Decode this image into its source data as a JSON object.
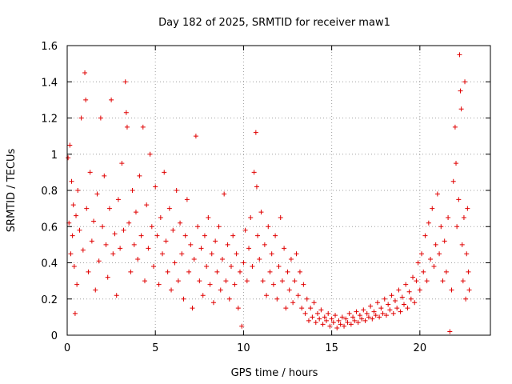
{
  "chart_data": {
    "type": "scatter",
    "title": "Day 182 of 2025, SRMTID for receiver maw1",
    "xlabel": "GPS time / hours",
    "ylabel": "SRMTID / TECUs",
    "xlim": [
      0,
      24
    ],
    "ylim": [
      0,
      1.6
    ],
    "xticks": [
      0,
      5,
      10,
      15,
      20
    ],
    "xtick_labels": [
      "0",
      "5",
      "10",
      "15",
      "20"
    ],
    "yticks": [
      0,
      0.2,
      0.4,
      0.6,
      0.8,
      1,
      1.2,
      1.4,
      1.6
    ],
    "ytick_labels": [
      "0",
      "0.2",
      "0.4",
      "0.6",
      "0.8",
      "1",
      "1.2",
      "1.4",
      "1.6"
    ],
    "grid": true,
    "marker": "+",
    "color": "#e00000",
    "series": [
      {
        "name": "SRMTID",
        "points": [
          [
            0.05,
            0.98
          ],
          [
            0.1,
            0.62
          ],
          [
            0.15,
            1.05
          ],
          [
            0.2,
            0.45
          ],
          [
            0.25,
            0.85
          ],
          [
            0.3,
            0.55
          ],
          [
            0.35,
            0.72
          ],
          [
            0.4,
            0.38
          ],
          [
            0.45,
            0.12
          ],
          [
            0.5,
            0.66
          ],
          [
            0.55,
            0.28
          ],
          [
            0.6,
            0.8
          ],
          [
            0.7,
            0.58
          ],
          [
            0.8,
            1.2
          ],
          [
            0.9,
            0.47
          ],
          [
            1.0,
            1.45
          ],
          [
            1.05,
            1.3
          ],
          [
            1.1,
            0.7
          ],
          [
            1.2,
            0.35
          ],
          [
            1.3,
            0.9
          ],
          [
            1.4,
            0.52
          ],
          [
            1.5,
            0.63
          ],
          [
            1.6,
            0.25
          ],
          [
            1.7,
            0.78
          ],
          [
            1.8,
            0.41
          ],
          [
            1.9,
            1.2
          ],
          [
            2.0,
            0.6
          ],
          [
            2.1,
            0.88
          ],
          [
            2.2,
            0.5
          ],
          [
            2.3,
            0.32
          ],
          [
            2.4,
            0.7
          ],
          [
            2.5,
            1.3
          ],
          [
            2.6,
            0.45
          ],
          [
            2.7,
            0.56
          ],
          [
            2.8,
            0.22
          ],
          [
            2.9,
            0.75
          ],
          [
            3.0,
            0.48
          ],
          [
            3.1,
            0.95
          ],
          [
            3.2,
            0.58
          ],
          [
            3.3,
            1.4
          ],
          [
            3.35,
            1.23
          ],
          [
            3.4,
            1.15
          ],
          [
            3.5,
            0.62
          ],
          [
            3.6,
            0.35
          ],
          [
            3.7,
            0.8
          ],
          [
            3.8,
            0.5
          ],
          [
            3.9,
            0.68
          ],
          [
            4.0,
            0.42
          ],
          [
            4.1,
            0.88
          ],
          [
            4.2,
            0.55
          ],
          [
            4.3,
            1.15
          ],
          [
            4.4,
            0.3
          ],
          [
            4.5,
            0.72
          ],
          [
            4.6,
            0.48
          ],
          [
            4.7,
            1.0
          ],
          [
            4.8,
            0.6
          ],
          [
            4.9,
            0.38
          ],
          [
            5.0,
            0.82
          ],
          [
            5.1,
            0.55
          ],
          [
            5.2,
            0.28
          ],
          [
            5.3,
            0.65
          ],
          [
            5.4,
            0.45
          ],
          [
            5.5,
            0.9
          ],
          [
            5.6,
            0.52
          ],
          [
            5.7,
            0.35
          ],
          [
            5.8,
            0.7
          ],
          [
            5.9,
            0.25
          ],
          [
            6.0,
            0.58
          ],
          [
            6.1,
            0.4
          ],
          [
            6.2,
            0.8
          ],
          [
            6.3,
            0.3
          ],
          [
            6.4,
            0.62
          ],
          [
            6.5,
            0.45
          ],
          [
            6.6,
            0.2
          ],
          [
            6.7,
            0.55
          ],
          [
            6.8,
            0.75
          ],
          [
            6.9,
            0.35
          ],
          [
            7.0,
            0.5
          ],
          [
            7.1,
            0.15
          ],
          [
            7.2,
            0.42
          ],
          [
            7.3,
            1.1
          ],
          [
            7.4,
            0.6
          ],
          [
            7.5,
            0.3
          ],
          [
            7.6,
            0.48
          ],
          [
            7.7,
            0.22
          ],
          [
            7.8,
            0.55
          ],
          [
            7.9,
            0.38
          ],
          [
            8.0,
            0.65
          ],
          [
            8.1,
            0.28
          ],
          [
            8.2,
            0.45
          ],
          [
            8.3,
            0.18
          ],
          [
            8.4,
            0.52
          ],
          [
            8.5,
            0.35
          ],
          [
            8.6,
            0.6
          ],
          [
            8.7,
            0.25
          ],
          [
            8.8,
            0.42
          ],
          [
            8.9,
            0.78
          ],
          [
            9.0,
            0.3
          ],
          [
            9.1,
            0.5
          ],
          [
            9.2,
            0.2
          ],
          [
            9.3,
            0.38
          ],
          [
            9.4,
            0.55
          ],
          [
            9.5,
            0.28
          ],
          [
            9.6,
            0.45
          ],
          [
            9.7,
            0.15
          ],
          [
            9.8,
            0.35
          ],
          [
            9.9,
            0.05
          ],
          [
            10.0,
            0.4
          ],
          [
            10.1,
            0.58
          ],
          [
            10.2,
            0.3
          ],
          [
            10.3,
            0.48
          ],
          [
            10.4,
            0.65
          ],
          [
            10.5,
            0.38
          ],
          [
            10.6,
            0.9
          ],
          [
            10.7,
            1.12
          ],
          [
            10.75,
            0.82
          ],
          [
            10.8,
            0.55
          ],
          [
            10.9,
            0.42
          ],
          [
            11.0,
            0.68
          ],
          [
            11.1,
            0.3
          ],
          [
            11.2,
            0.5
          ],
          [
            11.3,
            0.22
          ],
          [
            11.4,
            0.6
          ],
          [
            11.5,
            0.35
          ],
          [
            11.6,
            0.45
          ],
          [
            11.7,
            0.28
          ],
          [
            11.8,
            0.55
          ],
          [
            11.9,
            0.2
          ],
          [
            12.0,
            0.38
          ],
          [
            12.1,
            0.65
          ],
          [
            12.2,
            0.3
          ],
          [
            12.3,
            0.48
          ],
          [
            12.4,
            0.15
          ],
          [
            12.5,
            0.35
          ],
          [
            12.6,
            0.25
          ],
          [
            12.7,
            0.42
          ],
          [
            12.8,
            0.18
          ],
          [
            12.9,
            0.3
          ],
          [
            13.0,
            0.45
          ],
          [
            13.1,
            0.22
          ],
          [
            13.2,
            0.35
          ],
          [
            13.3,
            0.15
          ],
          [
            13.4,
            0.28
          ],
          [
            13.5,
            0.12
          ],
          [
            13.6,
            0.2
          ],
          [
            13.7,
            0.08
          ],
          [
            13.8,
            0.15
          ],
          [
            13.9,
            0.1
          ],
          [
            14.0,
            0.18
          ],
          [
            14.1,
            0.07
          ],
          [
            14.2,
            0.12
          ],
          [
            14.3,
            0.09
          ],
          [
            14.4,
            0.14
          ],
          [
            14.5,
            0.06
          ],
          [
            14.6,
            0.1
          ],
          [
            14.7,
            0.08
          ],
          [
            14.8,
            0.12
          ],
          [
            14.9,
            0.05
          ],
          [
            15.0,
            0.09
          ],
          [
            15.1,
            0.07
          ],
          [
            15.2,
            0.11
          ],
          [
            15.3,
            0.04
          ],
          [
            15.4,
            0.08
          ],
          [
            15.5,
            0.06
          ],
          [
            15.6,
            0.1
          ],
          [
            15.7,
            0.05
          ],
          [
            15.8,
            0.09
          ],
          [
            15.9,
            0.07
          ],
          [
            16.0,
            0.12
          ],
          [
            16.1,
            0.06
          ],
          [
            16.2,
            0.1
          ],
          [
            16.3,
            0.08
          ],
          [
            16.4,
            0.13
          ],
          [
            16.5,
            0.07
          ],
          [
            16.6,
            0.11
          ],
          [
            16.7,
            0.09
          ],
          [
            16.8,
            0.14
          ],
          [
            16.9,
            0.08
          ],
          [
            17.0,
            0.12
          ],
          [
            17.1,
            0.1
          ],
          [
            17.2,
            0.16
          ],
          [
            17.3,
            0.09
          ],
          [
            17.4,
            0.13
          ],
          [
            17.5,
            0.11
          ],
          [
            17.6,
            0.18
          ],
          [
            17.7,
            0.1
          ],
          [
            17.8,
            0.15
          ],
          [
            17.9,
            0.12
          ],
          [
            18.0,
            0.2
          ],
          [
            18.1,
            0.11
          ],
          [
            18.2,
            0.17
          ],
          [
            18.3,
            0.14
          ],
          [
            18.4,
            0.22
          ],
          [
            18.5,
            0.12
          ],
          [
            18.6,
            0.19
          ],
          [
            18.7,
            0.15
          ],
          [
            18.8,
            0.25
          ],
          [
            18.9,
            0.13
          ],
          [
            19.0,
            0.21
          ],
          [
            19.1,
            0.17
          ],
          [
            19.2,
            0.28
          ],
          [
            19.3,
            0.15
          ],
          [
            19.4,
            0.24
          ],
          [
            19.5,
            0.2
          ],
          [
            19.6,
            0.32
          ],
          [
            19.7,
            0.18
          ],
          [
            19.8,
            0.3
          ],
          [
            19.9,
            0.4
          ],
          [
            20.0,
            0.25
          ],
          [
            20.1,
            0.45
          ],
          [
            20.2,
            0.35
          ],
          [
            20.3,
            0.55
          ],
          [
            20.4,
            0.3
          ],
          [
            20.5,
            0.62
          ],
          [
            20.6,
            0.42
          ],
          [
            20.7,
            0.7
          ],
          [
            20.8,
            0.38
          ],
          [
            20.9,
            0.5
          ],
          [
            21.0,
            0.78
          ],
          [
            21.1,
            0.45
          ],
          [
            21.2,
            0.6
          ],
          [
            21.3,
            0.3
          ],
          [
            21.4,
            0.52
          ],
          [
            21.5,
            0.35
          ],
          [
            21.6,
            0.65
          ],
          [
            21.7,
            0.02
          ],
          [
            21.8,
            0.25
          ],
          [
            21.9,
            0.85
          ],
          [
            22.0,
            1.15
          ],
          [
            22.05,
            0.95
          ],
          [
            22.1,
            0.6
          ],
          [
            22.2,
            0.75
          ],
          [
            22.25,
            1.55
          ],
          [
            22.3,
            1.35
          ],
          [
            22.35,
            1.25
          ],
          [
            22.4,
            0.5
          ],
          [
            22.45,
            0.3
          ],
          [
            22.5,
            0.65
          ],
          [
            22.55,
            1.4
          ],
          [
            22.6,
            0.2
          ],
          [
            22.65,
            0.45
          ],
          [
            22.7,
            0.7
          ],
          [
            22.75,
            0.35
          ],
          [
            22.8,
            0.25
          ]
        ]
      }
    ]
  }
}
